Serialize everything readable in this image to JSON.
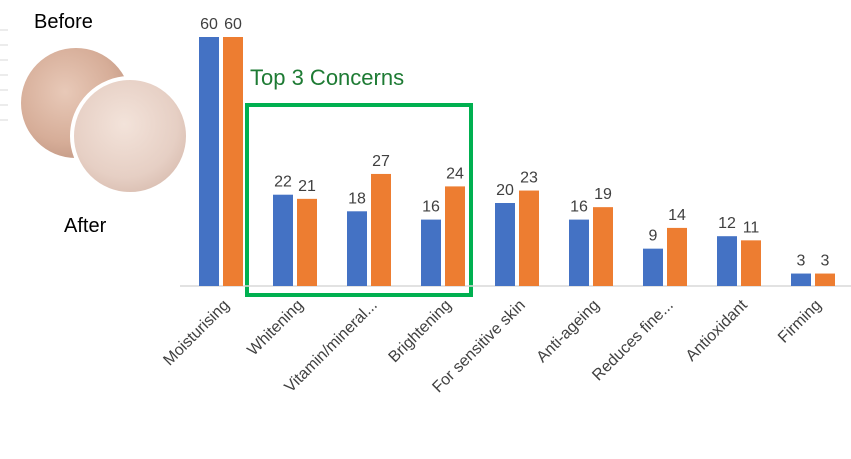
{
  "chart_data": {
    "type": "bar",
    "annotations": [
      "Before",
      "After",
      "Top 3 Concerns"
    ],
    "categories": [
      "Moisturising",
      "Whitening",
      "Vitamin/mineral...",
      "Brightening",
      "For sensitive skin",
      "Anti-ageing",
      "Reduces fine...",
      "Antioxidant",
      "Firming"
    ],
    "series": [
      {
        "color": "#4472c4",
        "values": [
          60,
          22,
          18,
          16,
          20,
          16,
          9,
          12,
          3
        ]
      },
      {
        "color": "#ed7d31",
        "values": [
          60,
          21,
          27,
          24,
          23,
          19,
          14,
          11,
          3
        ]
      }
    ],
    "ylim": [
      0,
      60
    ],
    "grid": false
  }
}
